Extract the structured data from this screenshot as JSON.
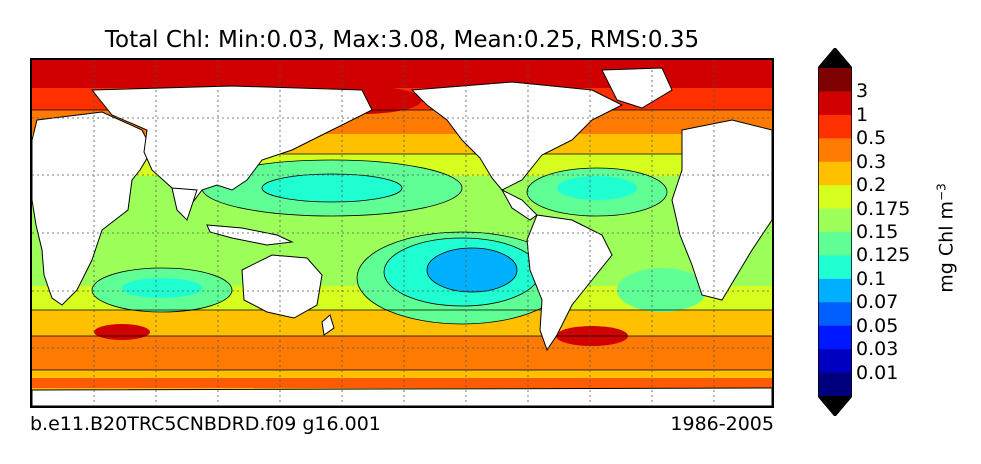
{
  "map": {
    "title": "Total Chl: Min:0.03, Max:3.08, Mean:0.25, RMS:0.35",
    "case_name": "b.e11.B20TRC5CNBDRD.f09 g16.001",
    "period": "1986-2005",
    "projection": "global lat-lon, Pacific centered",
    "gridlines": "dotted"
  },
  "colorbar": {
    "units_label": "mg Chl m",
    "units_exponent": "−3",
    "extend": "both",
    "labels": [
      "3",
      "1",
      "0.5",
      "0.3",
      "0.2",
      "0.175",
      "0.15",
      "0.125",
      "0.1",
      "0.07",
      "0.05",
      "0.03",
      "0.01"
    ],
    "colors": [
      "#7f0000",
      "#d00000",
      "#ff3000",
      "#ff7a00",
      "#ffc000",
      "#d6ff20",
      "#9cff5a",
      "#60ff96",
      "#20ffd2",
      "#00b0ff",
      "#0060ff",
      "#0018ff",
      "#0000c0",
      "#00007f"
    ],
    "over_color": "#000000",
    "under_color": "#000000"
  },
  "colors": {
    "land": "#ffffff",
    "contour_line": "#000000"
  }
}
